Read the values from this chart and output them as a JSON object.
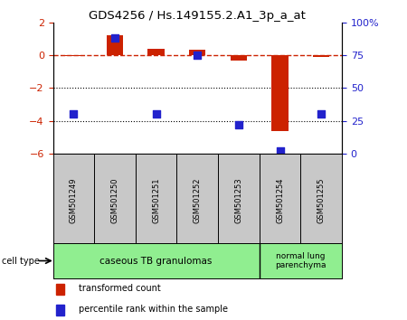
{
  "title": "GDS4256 / Hs.149155.2.A1_3p_a_at",
  "samples": [
    "GSM501249",
    "GSM501250",
    "GSM501251",
    "GSM501252",
    "GSM501253",
    "GSM501254",
    "GSM501255"
  ],
  "transformed_count": [
    -0.05,
    1.2,
    0.4,
    0.35,
    -0.3,
    -4.6,
    -0.1
  ],
  "percentile_rank": [
    30,
    88,
    30,
    75,
    22,
    2,
    30
  ],
  "ylim_left": [
    -6,
    2
  ],
  "ylim_right": [
    0,
    100
  ],
  "left_yticks": [
    -6,
    -4,
    -2,
    0,
    2
  ],
  "right_yticks": [
    0,
    25,
    50,
    75,
    100
  ],
  "bar_color": "#cc2200",
  "dot_color": "#2222cc",
  "hline_color": "#cc2200",
  "legend_labels": [
    "transformed count",
    "percentile rank within the sample"
  ],
  "cell_type_group1_label": "caseous TB granulomas",
  "cell_type_group2_label": "normal lung\nparenchyma",
  "cell_type_color": "#90EE90",
  "sample_box_color": "#c8c8c8",
  "background_color": "#ffffff"
}
